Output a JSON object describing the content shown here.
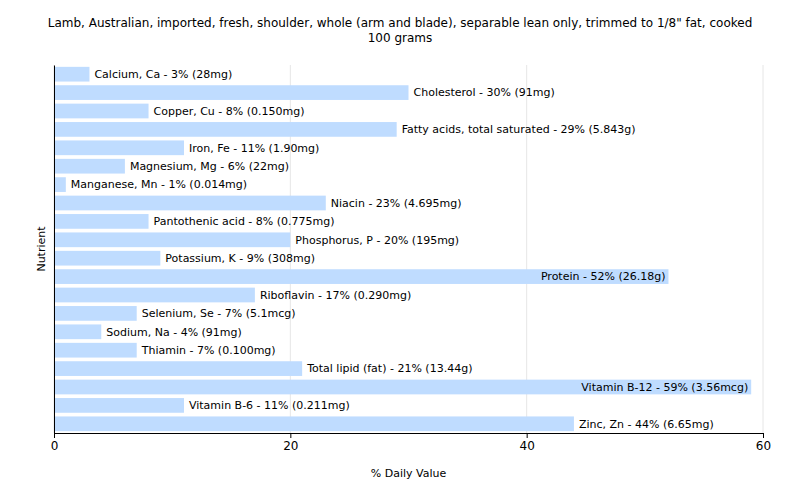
{
  "chart_data": {
    "type": "bar",
    "orientation": "horizontal",
    "title": "Lamb, Australian, imported, fresh, shoulder, whole (arm and blade), separable lean only, trimmed to 1/8\" fat, cooked\n100 grams",
    "x_label": "% Daily Value",
    "y_label": "Nutrient",
    "categories": [
      "Calcium, Ca - 3% (28mg)",
      "Cholesterol - 30% (91mg)",
      "Copper, Cu - 8% (0.150mg)",
      "Fatty acids, total saturated - 29% (5.843g)",
      "Iron, Fe - 11% (1.90mg)",
      "Magnesium, Mg - 6% (22mg)",
      "Manganese, Mn - 1% (0.014mg)",
      "Niacin - 23% (4.695mg)",
      "Pantothenic acid - 8% (0.775mg)",
      "Phosphorus, P - 20% (195mg)",
      "Potassium, K - 9% (308mg)",
      "Protein - 52% (26.18g)",
      "Riboflavin - 17% (0.290mg)",
      "Selenium, Se - 7% (5.1mcg)",
      "Sodium, Na - 4% (91mg)",
      "Thiamin - 7% (0.100mg)",
      "Total lipid (fat) - 21% (13.44g)",
      "Vitamin B-12 - 59% (3.56mcg)",
      "Vitamin B-6 - 11% (0.211mg)",
      "Zinc, Zn - 44% (6.65mg)"
    ],
    "values": [
      3,
      30,
      8,
      29,
      11,
      6,
      1,
      23,
      8,
      20,
      9,
      52,
      17,
      7,
      4,
      7,
      21,
      59,
      11,
      44
    ],
    "color": "#bfdcff",
    "xlim": [
      0,
      60
    ],
    "xticks": [
      0,
      20,
      40,
      60
    ],
    "grid": true,
    "tick_labels": "x"
  }
}
